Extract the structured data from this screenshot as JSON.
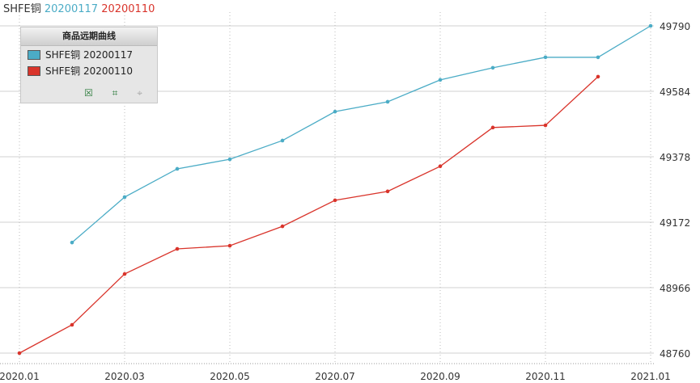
{
  "chart_data": {
    "type": "line",
    "title": "SHFE铜",
    "title_dates": [
      "20200117",
      "20200110"
    ],
    "legend_title": "商品远期曲线",
    "categories": [
      "2020.01",
      null,
      "2020.03",
      null,
      "2020.05",
      null,
      "2020.07",
      null,
      "2020.09",
      null,
      "2020.11",
      null,
      "2021.01"
    ],
    "series": [
      {
        "name": "SHFE铜 20200117",
        "color": "#4bacc6",
        "values": [
          null,
          49108,
          49251,
          49340,
          49370,
          49429,
          49520,
          49551,
          49620,
          49658,
          49691,
          49691,
          49790
        ]
      },
      {
        "name": "SHFE铜 20200110",
        "color": "#d9342b",
        "values": [
          48760,
          48849,
          49009,
          49088,
          49098,
          49159,
          49241,
          49269,
          49348,
          49470,
          49477,
          49630,
          null
        ]
      }
    ],
    "ylim": [
      48760,
      49790
    ],
    "yticks": [
      48760,
      48966,
      49172,
      49378,
      49584,
      49790
    ],
    "grid": true,
    "legend": "upper left"
  }
}
